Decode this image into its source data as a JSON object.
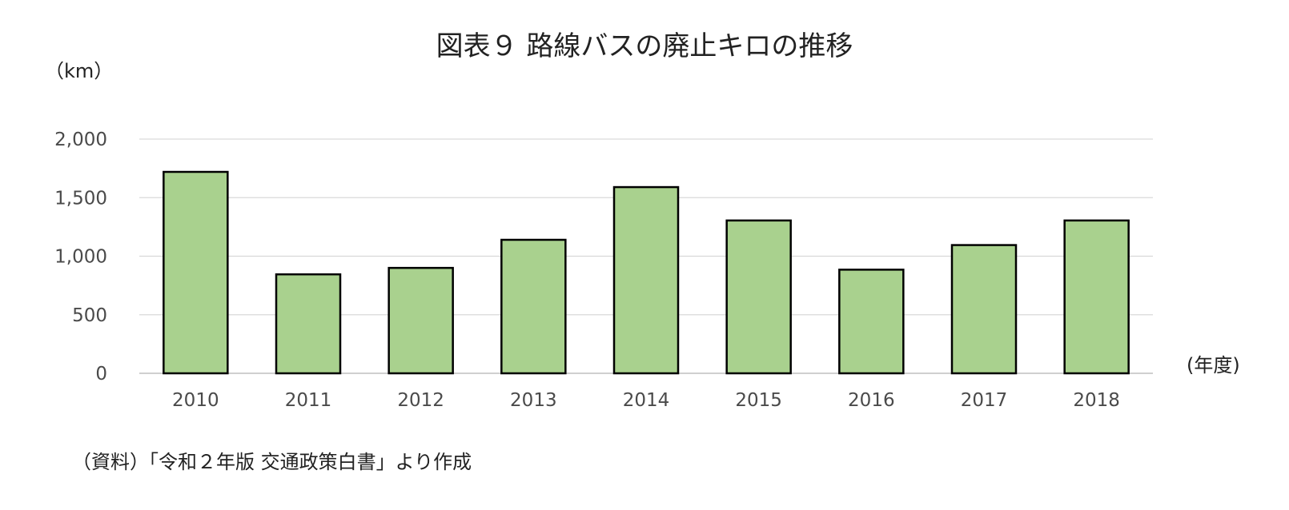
{
  "chart_data": {
    "type": "bar",
    "title": "図表９ 路線バスの廃止キロの推移",
    "ylabel": "（km）",
    "xlabel": "(年度)",
    "categories": [
      "2010",
      "2011",
      "2012",
      "2013",
      "2014",
      "2015",
      "2016",
      "2017",
      "2018"
    ],
    "values": [
      1720,
      845,
      900,
      1140,
      1590,
      1305,
      885,
      1095,
      1305
    ],
    "yticks": [
      "0",
      "500",
      "1,000",
      "1,500",
      "2,000"
    ],
    "ylim": [
      0,
      2000
    ],
    "grid": true,
    "legend": "none",
    "bar_color": "#a9d18e",
    "bar_edge_color": "#000000",
    "source": "（資料）「令和２年版 交通政策白書」より作成"
  }
}
